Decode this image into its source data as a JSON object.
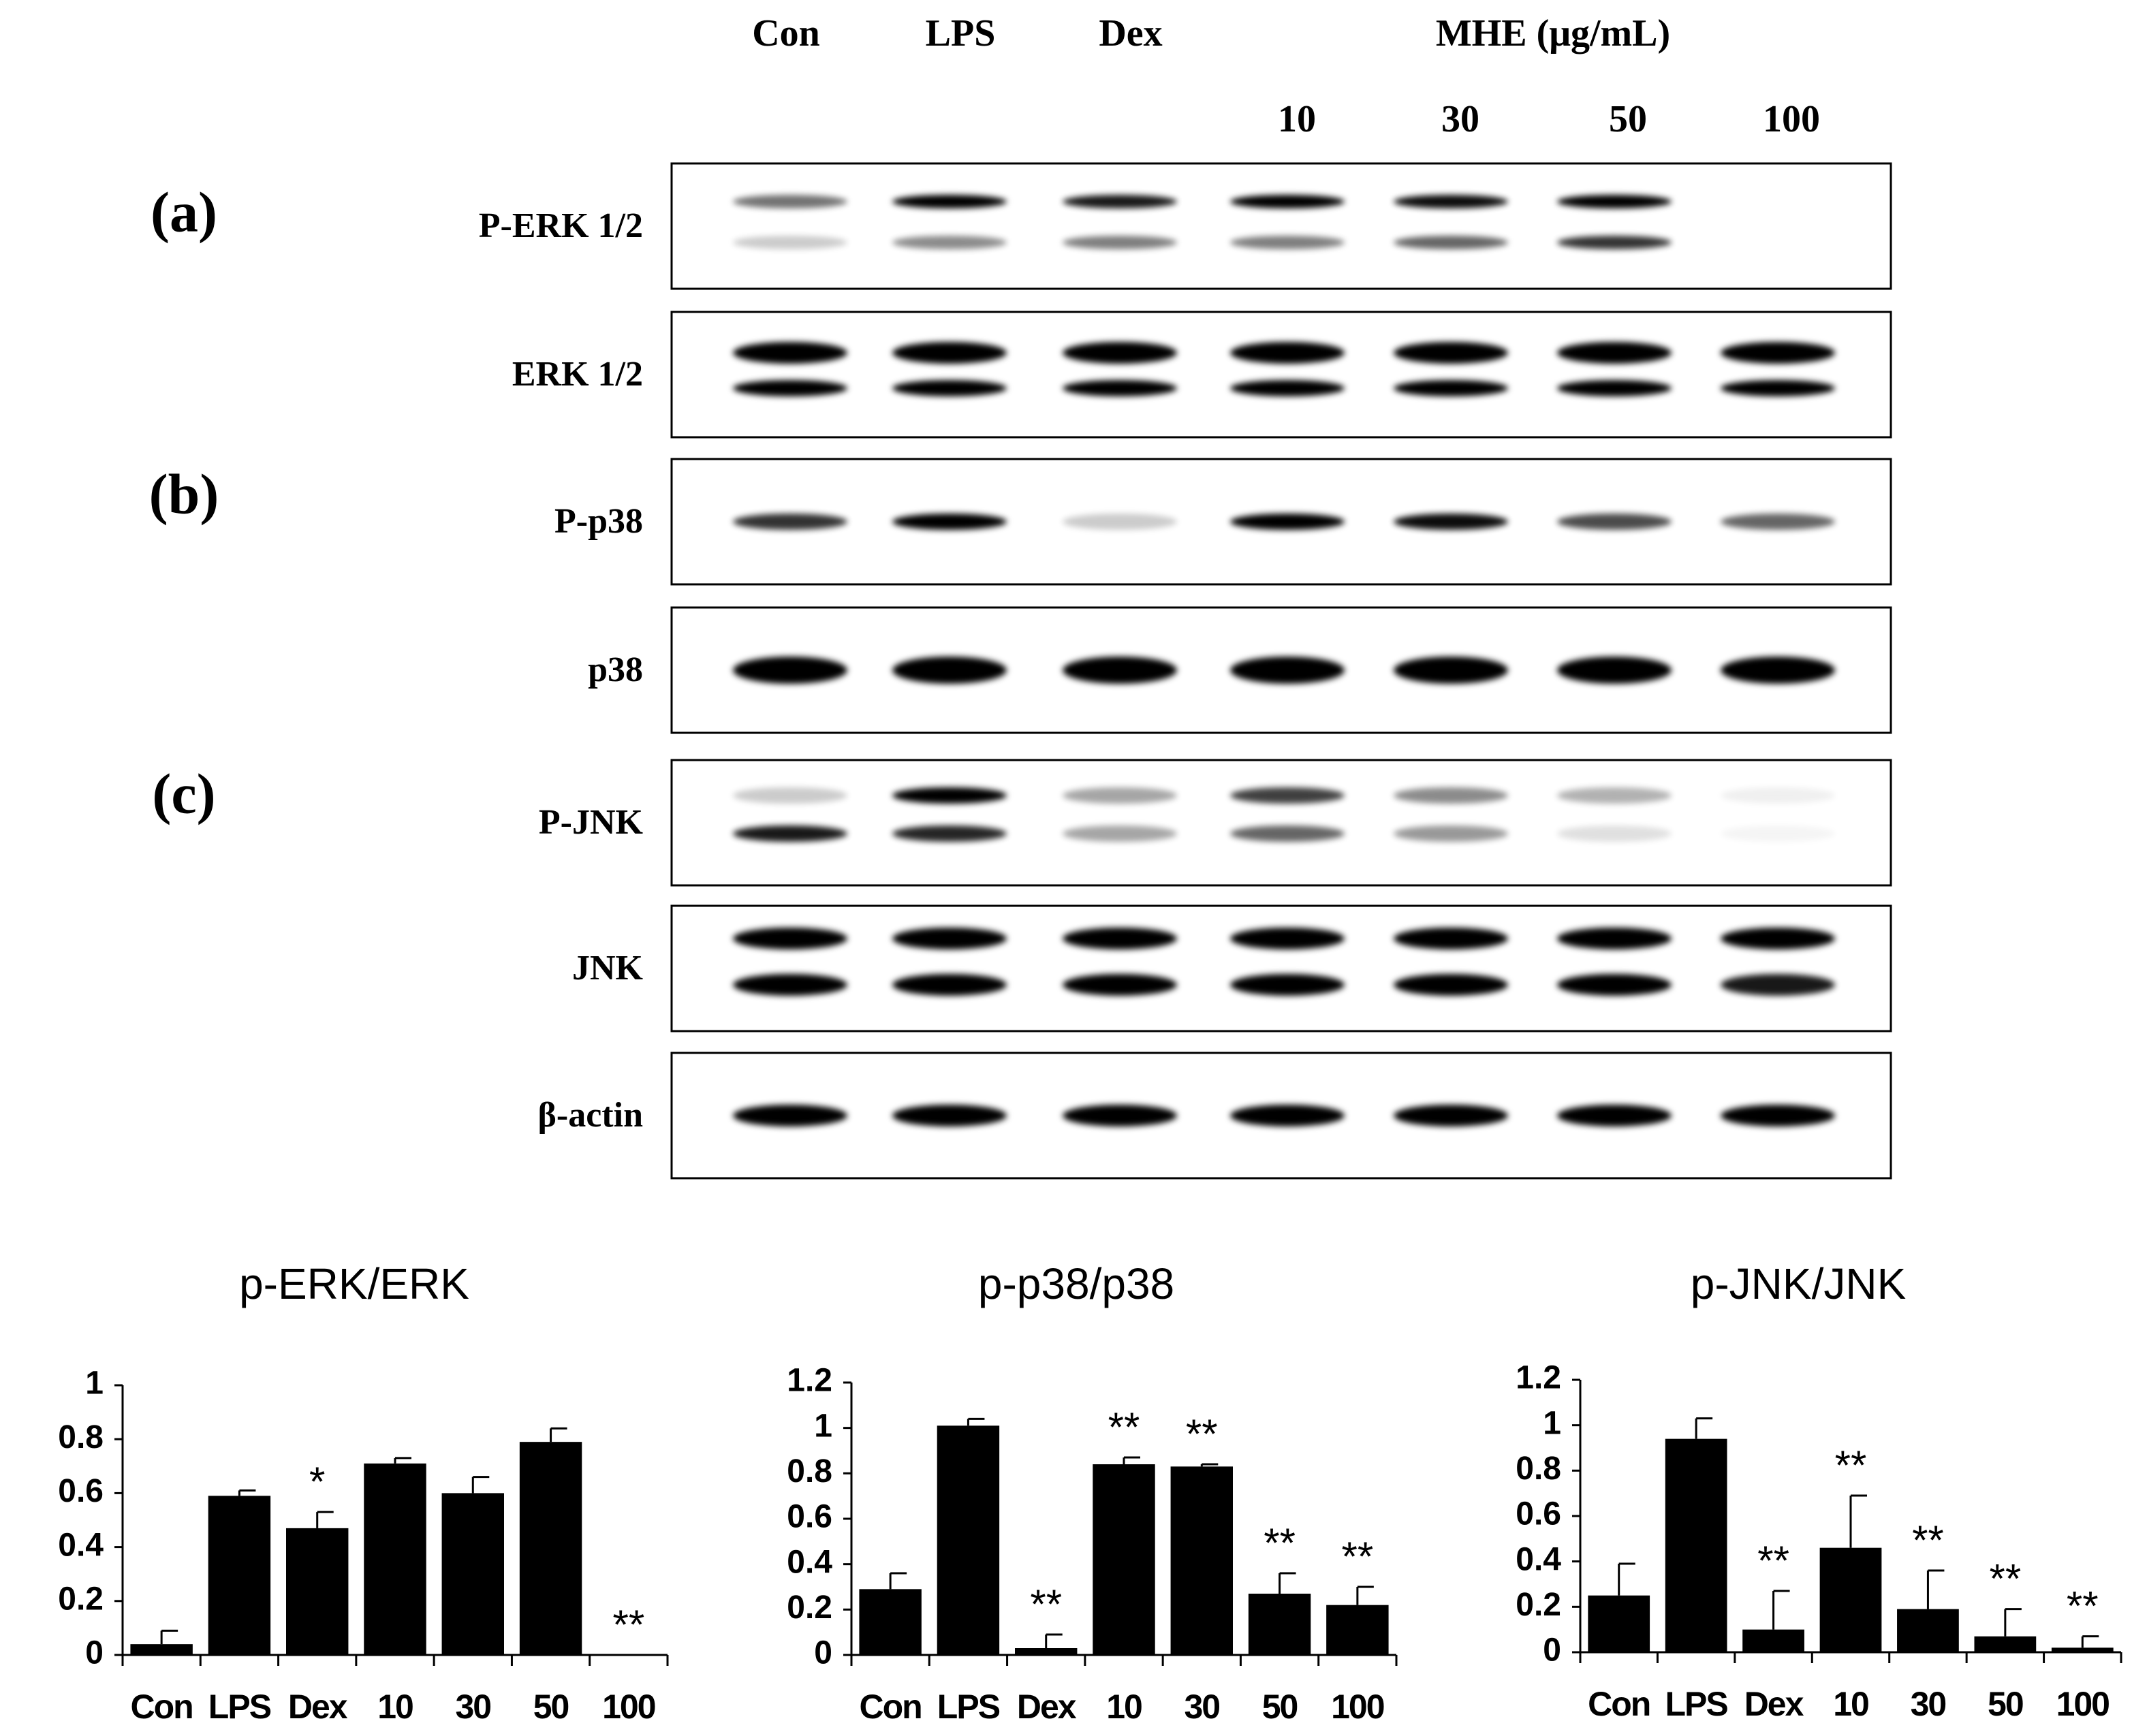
{
  "blot": {
    "lanes": [
      "Con",
      "LPS",
      "Dex"
    ],
    "group_label": "MHE (μg/mL)",
    "concentrations": [
      "10",
      "30",
      "50",
      "100"
    ],
    "panels": [
      "(a)",
      "(b)",
      "(c)"
    ],
    "rows": [
      "P-ERK 1/2",
      "ERK 1/2",
      "P-p38",
      "p38",
      "P-JNK",
      "JNK",
      "β-actin"
    ]
  },
  "chart_data": [
    {
      "type": "bar",
      "title": "p-ERK/ERK",
      "categories": [
        "Con",
        "LPS",
        "Dex",
        "10",
        "30",
        "50",
        "100"
      ],
      "values": [
        0.04,
        0.59,
        0.47,
        0.71,
        0.6,
        0.79,
        0
      ],
      "errors": [
        0.05,
        0.02,
        0.06,
        0.02,
        0.06,
        0.05,
        null
      ],
      "annotations": [
        null,
        null,
        "*",
        null,
        null,
        null,
        "**"
      ],
      "color": "#000000",
      "ylim": [
        0,
        1
      ],
      "yticks": [
        0,
        0.2,
        0.4,
        0.6,
        0.8,
        1
      ]
    },
    {
      "type": "bar",
      "title": "p-p38/p38",
      "categories": [
        "Con",
        "LPS",
        "Dex",
        "10",
        "30",
        "50",
        "100"
      ],
      "values": [
        0.29,
        1.01,
        0.03,
        0.84,
        0.83,
        0.27,
        0.22
      ],
      "errors": [
        0.07,
        0.03,
        0.06,
        0.03,
        0.01,
        0.09,
        0.08
      ],
      "annotations": [
        null,
        null,
        "**",
        "**",
        "**",
        "**",
        "**"
      ],
      "color": "#000000",
      "ylim": [
        0,
        1.2
      ],
      "yticks": [
        0,
        0.2,
        0.4,
        0.6,
        0.8,
        1,
        1.2
      ]
    },
    {
      "type": "bar",
      "title": "p-JNK/JNK",
      "categories": [
        "Con",
        "LPS",
        "Dex",
        "10",
        "30",
        "50",
        "100"
      ],
      "values": [
        0.25,
        0.94,
        0.1,
        0.46,
        0.19,
        0.07,
        0.02
      ],
      "errors": [
        0.14,
        0.09,
        0.17,
        0.23,
        0.17,
        0.12,
        0.05
      ],
      "annotations": [
        null,
        null,
        "**",
        "**",
        "**",
        "**",
        "**"
      ],
      "color": "#000000",
      "ylim": [
        0,
        1.2
      ],
      "yticks": [
        0,
        0.2,
        0.4,
        0.6,
        0.8,
        1,
        1.2
      ]
    }
  ]
}
